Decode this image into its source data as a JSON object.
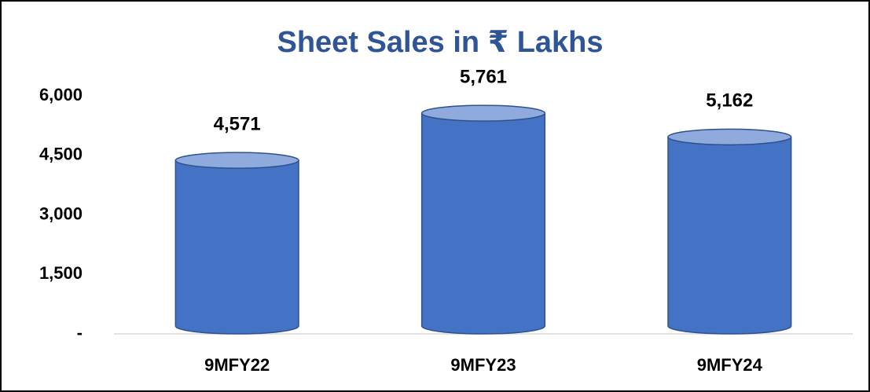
{
  "chart_data": {
    "type": "bar",
    "title": "Sheet Sales in ₹ Lakhs",
    "categories": [
      "9MFY22",
      "9MFY23",
      "9MFY24"
    ],
    "values": [
      4571,
      5761,
      5162
    ],
    "value_labels": [
      "4,571",
      "5,761",
      "5,162"
    ],
    "color": "#4472C4",
    "ylim": [
      0,
      6000
    ],
    "yticks": [
      {
        "value": 0,
        "label": "-"
      },
      {
        "value": 1500,
        "label": "1,500"
      },
      {
        "value": 3000,
        "label": "3,000"
      },
      {
        "value": 4500,
        "label": "4,500"
      },
      {
        "value": 6000,
        "label": "6,000"
      }
    ],
    "grid": false
  }
}
